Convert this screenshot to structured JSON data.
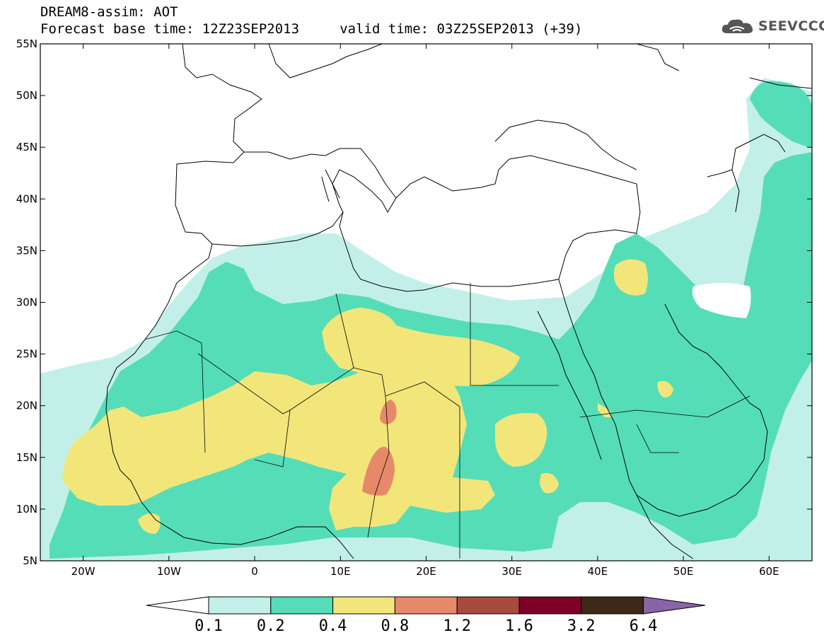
{
  "header": {
    "line1": "DREAM8-assim: AOT",
    "line2": "Forecast base time: 12Z23SEP2013     valid time: 03Z25SEP2013 (+39)"
  },
  "logo": {
    "text": "SEEVCCC",
    "icon": "cloud-icon"
  },
  "map": {
    "projection": "lat-lon",
    "extent": {
      "lon": [
        -25,
        65
      ],
      "lat": [
        5,
        55
      ]
    },
    "lat_labels": [
      "5N",
      "10N",
      "15N",
      "20N",
      "25N",
      "30N",
      "35N",
      "40N",
      "45N",
      "50N",
      "55N"
    ],
    "lon_labels": [
      "20W",
      "10W",
      "0",
      "10E",
      "20E",
      "30E",
      "40E",
      "50E",
      "60E"
    ]
  },
  "colorbar": {
    "labels": [
      "0.1",
      "0.2",
      "0.4",
      "0.8",
      "1.2",
      "1.6",
      "3.2",
      "6.4"
    ],
    "colors": [
      "#ffffff",
      "#c2f0e8",
      "#55ddb8",
      "#f2e67a",
      "#e6896a",
      "#a84b3e",
      "#7e0028",
      "#3e2818",
      "#8a64a8"
    ]
  },
  "colors": {
    "aot_0_1": "#c2f0e8",
    "aot_0_2": "#55ddb8",
    "aot_0_4": "#f2e67a",
    "aot_0_8": "#e6896a"
  }
}
